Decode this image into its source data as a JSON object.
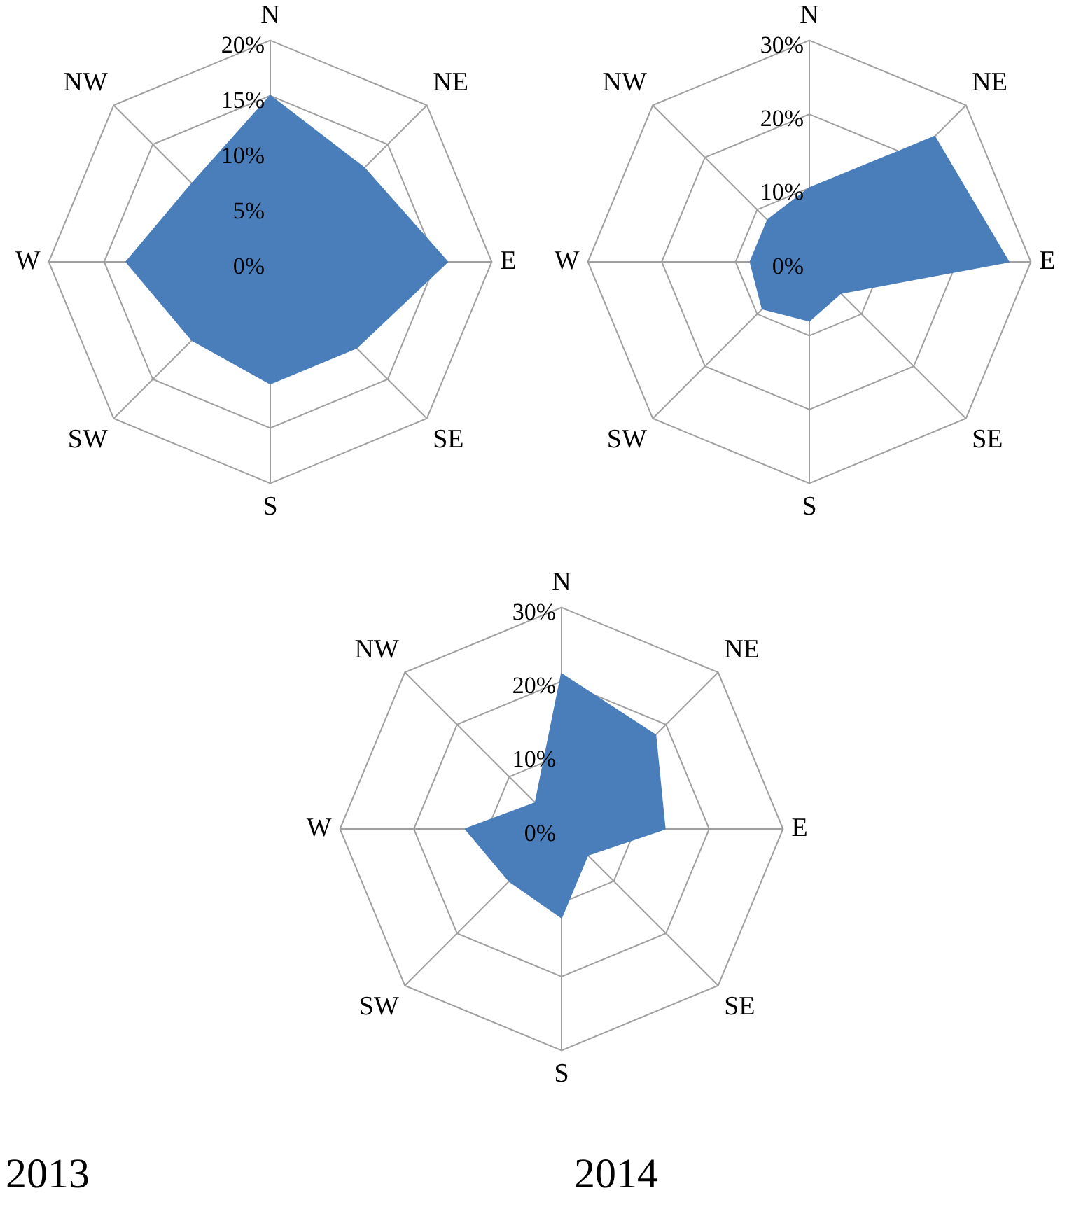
{
  "chart_data": [
    {
      "type": "radar",
      "categories": [
        "N",
        "NE",
        "E",
        "SE",
        "S",
        "SW",
        "W",
        "NW"
      ],
      "series": [
        {
          "color": "#4a7ebb",
          "values": [
            15,
            12,
            16,
            11,
            11,
            10,
            13,
            10
          ]
        }
      ],
      "ylim": [
        0,
        20
      ],
      "yticks": [
        {
          "value": 0,
          "label": "0%"
        },
        {
          "value": 5,
          "label": "5%"
        },
        {
          "value": 10,
          "label": "10%"
        },
        {
          "value": 15,
          "label": "15%"
        },
        {
          "value": 20,
          "label": "20%"
        }
      ],
      "grid": true,
      "legend": false,
      "marker": "none"
    },
    {
      "type": "radar",
      "categories": [
        "N",
        "NE",
        "E",
        "SE",
        "S",
        "SW",
        "W",
        "NW"
      ],
      "series": [
        {
          "color": "#4a7ebb",
          "values": [
            10,
            24,
            27,
            6,
            8,
            9,
            8,
            8
          ]
        }
      ],
      "ylim": [
        0,
        30
      ],
      "yticks": [
        {
          "value": 0,
          "label": "0%"
        },
        {
          "value": 10,
          "label": "10%"
        },
        {
          "value": 20,
          "label": "20%"
        },
        {
          "value": 30,
          "label": "30%"
        }
      ],
      "grid": true,
      "legend": false,
      "marker": "none"
    },
    {
      "type": "radar",
      "categories": [
        "N",
        "NE",
        "E",
        "SE",
        "S",
        "SW",
        "W",
        "NW"
      ],
      "series": [
        {
          "color": "#4a7ebb",
          "values": [
            21,
            18,
            14,
            5,
            12,
            10,
            13,
            5
          ]
        }
      ],
      "ylim": [
        0,
        30
      ],
      "yticks": [
        {
          "value": 0,
          "label": "0%"
        },
        {
          "value": 10,
          "label": "10%"
        },
        {
          "value": 20,
          "label": "20%"
        },
        {
          "value": 30,
          "label": "30%"
        }
      ],
      "grid": true,
      "legend": false,
      "marker": "none",
      "annotations": [
        "2013",
        "2014"
      ]
    }
  ]
}
